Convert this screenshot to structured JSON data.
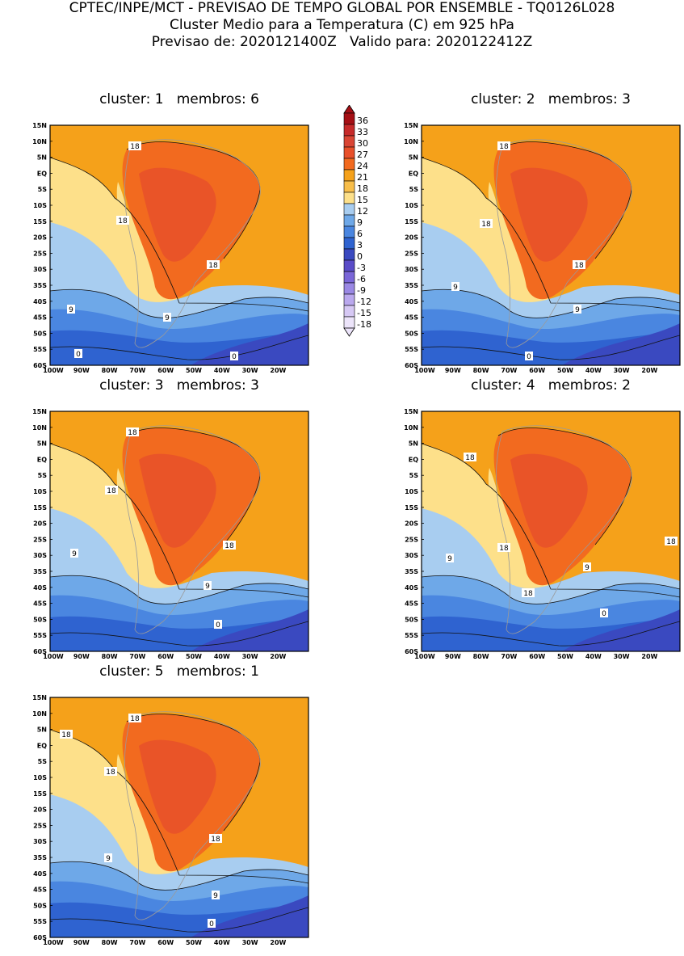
{
  "header": {
    "line1": "CPTEC/INPE/MCT - PREVISAO DE TEMPO GLOBAL POR ENSEMBLE - TQ0126L028",
    "line2": "Cluster Medio para a Temperatura (C) em 925 hPa",
    "line3": "Previsao de: 2020121400Z   Valido para: 2020122412Z"
  },
  "axes": {
    "lat_labels": [
      "15N",
      "10N",
      "5N",
      "EQ",
      "5S",
      "10S",
      "15S",
      "20S",
      "25S",
      "30S",
      "35S",
      "40S",
      "45S",
      "50S",
      "55S",
      "60S"
    ],
    "lon_labels": [
      "100W",
      "90W",
      "80W",
      "70W",
      "60W",
      "50W",
      "40W",
      "30W",
      "20W"
    ]
  },
  "colorbar": {
    "levels": [
      "36",
      "33",
      "30",
      "27",
      "24",
      "21",
      "18",
      "15",
      "12",
      "9",
      "6",
      "3",
      "0",
      "-3",
      "-6",
      "-9",
      "-12",
      "-15",
      "-18"
    ],
    "colors": [
      "#a50f15",
      "#c62a2a",
      "#d94534",
      "#e8502a",
      "#f26a1f",
      "#f5a11a",
      "#f8be4a",
      "#fde08a",
      "#a8cdf0",
      "#6ea8e8",
      "#4a86e0",
      "#2f63d0",
      "#3a49c0",
      "#5a4cc8",
      "#7a66d8",
      "#9a88e4",
      "#baa8ee",
      "#d6c8f4",
      "#ece4fa"
    ],
    "colors_note": "shading bins from top (>=36) to bottom (<-18)"
  },
  "panels": [
    {
      "title": "cluster: 1   membros: 6",
      "contour_labels": [
        {
          "text": "18"
        },
        {
          "text": "18"
        },
        {
          "text": "18"
        },
        {
          "text": "9"
        },
        {
          "text": "9"
        },
        {
          "text": "0"
        },
        {
          "text": "0"
        }
      ]
    },
    {
      "title": "cluster: 2   membros: 3",
      "contour_labels": [
        {
          "text": "18"
        },
        {
          "text": "18"
        },
        {
          "text": "18"
        },
        {
          "text": "9"
        },
        {
          "text": "9"
        },
        {
          "text": "0"
        }
      ]
    },
    {
      "title": "cluster: 3   membros: 3",
      "contour_labels": [
        {
          "text": "18"
        },
        {
          "text": "18"
        },
        {
          "text": "18"
        },
        {
          "text": "9"
        },
        {
          "text": "9"
        },
        {
          "text": "0"
        }
      ]
    },
    {
      "title": "cluster: 4   membros: 2",
      "contour_labels": [
        {
          "text": "18"
        },
        {
          "text": "18"
        },
        {
          "text": "18"
        },
        {
          "text": "18"
        },
        {
          "text": "9"
        },
        {
          "text": "9"
        },
        {
          "text": "0"
        }
      ]
    },
    {
      "title": "cluster: 5   membros: 1",
      "contour_labels": [
        {
          "text": "18"
        },
        {
          "text": "18"
        },
        {
          "text": "18"
        },
        {
          "text": "18"
        },
        {
          "text": "9"
        },
        {
          "text": "9"
        },
        {
          "text": "0"
        }
      ]
    }
  ]
}
